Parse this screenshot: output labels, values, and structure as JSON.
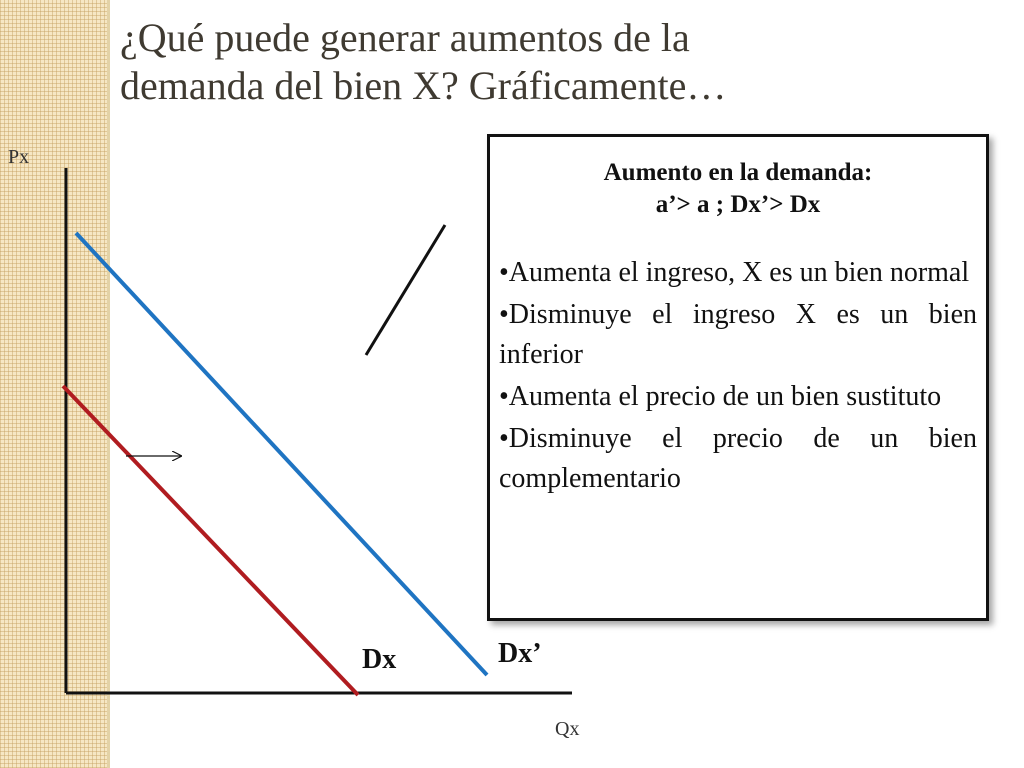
{
  "title": {
    "line1": "¿Qué puede generar aumentos de la",
    "line2": "demanda del bien X? Gráficamente…"
  },
  "diagram": {
    "y_axis_label": "Px",
    "x_axis_label": "Qx",
    "curves": [
      {
        "label": "Dx",
        "color": "#b01c20"
      },
      {
        "label": "Dx’",
        "color": "#1f74c2"
      }
    ],
    "shift_arrow": "right"
  },
  "info_box": {
    "heading_line1": "Aumento en la demanda:",
    "heading_line2": "a’> a ; Dx’> Dx",
    "items": [
      "•Aumenta el ingreso, X es un bien normal",
      "•Disminuye el ingreso X es un bien inferior",
      "•Aumenta el precio de un bien sustituto",
      "•Disminuye el precio de un bien complementario"
    ]
  }
}
